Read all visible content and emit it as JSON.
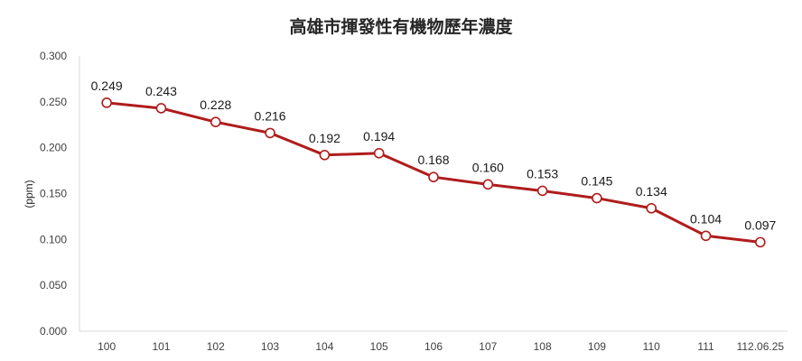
{
  "chart_data": {
    "type": "line",
    "title": "高雄市揮發性有機物歷年濃度",
    "ylabel": "(ppm)",
    "xlabel": "",
    "categories": [
      "100",
      "101",
      "102",
      "103",
      "104",
      "105",
      "106",
      "107",
      "108",
      "109",
      "110",
      "111",
      "112.06.25"
    ],
    "series": [
      {
        "values": [
          0.249,
          0.243,
          0.228,
          0.216,
          0.192,
          0.194,
          0.168,
          0.16,
          0.153,
          0.145,
          0.134,
          0.104,
          0.097
        ],
        "color": "#b01c1c",
        "marker_fill": "#ffffff"
      }
    ],
    "ylim": [
      0,
      0.3
    ],
    "yticks": [
      0,
      0.05,
      0.1,
      0.15,
      0.2,
      0.25,
      0.3
    ],
    "grid": false,
    "legend": "none",
    "axis_color": "#d9d9d9"
  }
}
